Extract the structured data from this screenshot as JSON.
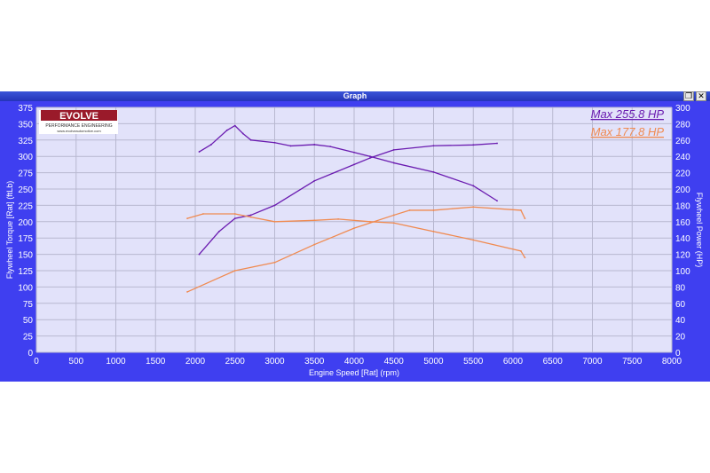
{
  "window": {
    "title": "Graph",
    "restore_icon": "restore-icon",
    "close_icon": "close-icon"
  },
  "logo": {
    "brand": "EVOLVE",
    "tagline": "PERFORMANCE ENGINEERING",
    "url": "www.evolveautomotive.com"
  },
  "chart_data": {
    "type": "line",
    "xlabel": "Engine Speed [Rat] (rpm)",
    "ylabel_left": "Flywheel Torque [Rat] (ftLb)",
    "ylabel_right": "Flywheel Power (HP)",
    "xlim": [
      0,
      8000
    ],
    "ylim_left": [
      0,
      375
    ],
    "ylim_right": [
      0,
      300
    ],
    "xticks": [
      0,
      500,
      1000,
      1500,
      2000,
      2500,
      3000,
      3500,
      4000,
      4500,
      5000,
      5500,
      6000,
      6500,
      7000,
      7500,
      8000
    ],
    "yticks_left": [
      0,
      25,
      50,
      75,
      100,
      125,
      150,
      175,
      200,
      225,
      250,
      275,
      300,
      325,
      350,
      375
    ],
    "yticks_right": [
      0,
      20,
      40,
      60,
      80,
      100,
      120,
      140,
      160,
      180,
      200,
      220,
      240,
      260,
      280,
      300
    ],
    "grid": true,
    "legend": [
      {
        "text": "Max 255.8 HP",
        "color": "#6a1bb0"
      },
      {
        "text": "Max 177.8 HP",
        "color": "#f08a50"
      }
    ],
    "series": [
      {
        "color": "#6a1bb0",
        "axis": "left",
        "x": [
          2050,
          2200,
          2400,
          2500,
          2600,
          2700,
          3000,
          3200,
          3500,
          3700,
          4000,
          4200,
          4500,
          5000,
          5500,
          5800
        ],
        "y": [
          307,
          318,
          340,
          347,
          335,
          325,
          321,
          316,
          318,
          315,
          306,
          300,
          290,
          276,
          255,
          232
        ]
      },
      {
        "color": "#6a1bb0",
        "axis": "right",
        "x": [
          2050,
          2300,
          2500,
          2700,
          3000,
          3500,
          4000,
          4200,
          4500,
          5000,
          5500,
          5800
        ],
        "y": [
          120,
          148,
          164,
          168,
          180,
          210,
          230,
          238,
          248,
          253,
          254,
          256
        ]
      },
      {
        "color": "#f08a50",
        "axis": "left",
        "x": [
          1900,
          2100,
          2500,
          2700,
          3000,
          3500,
          3800,
          4200,
          4500,
          5000,
          5500,
          6100,
          6150
        ],
        "y": [
          205,
          212,
          212,
          207,
          200,
          202,
          204,
          200,
          198,
          185,
          172,
          155,
          145
        ]
      },
      {
        "color": "#f08a50",
        "axis": "right",
        "x": [
          1900,
          2500,
          3000,
          3500,
          4000,
          4500,
          4700,
          5000,
          5500,
          6100,
          6150
        ],
        "y": [
          74,
          100,
          110,
          132,
          152,
          168,
          174,
          174,
          178,
          174,
          164
        ]
      }
    ]
  }
}
